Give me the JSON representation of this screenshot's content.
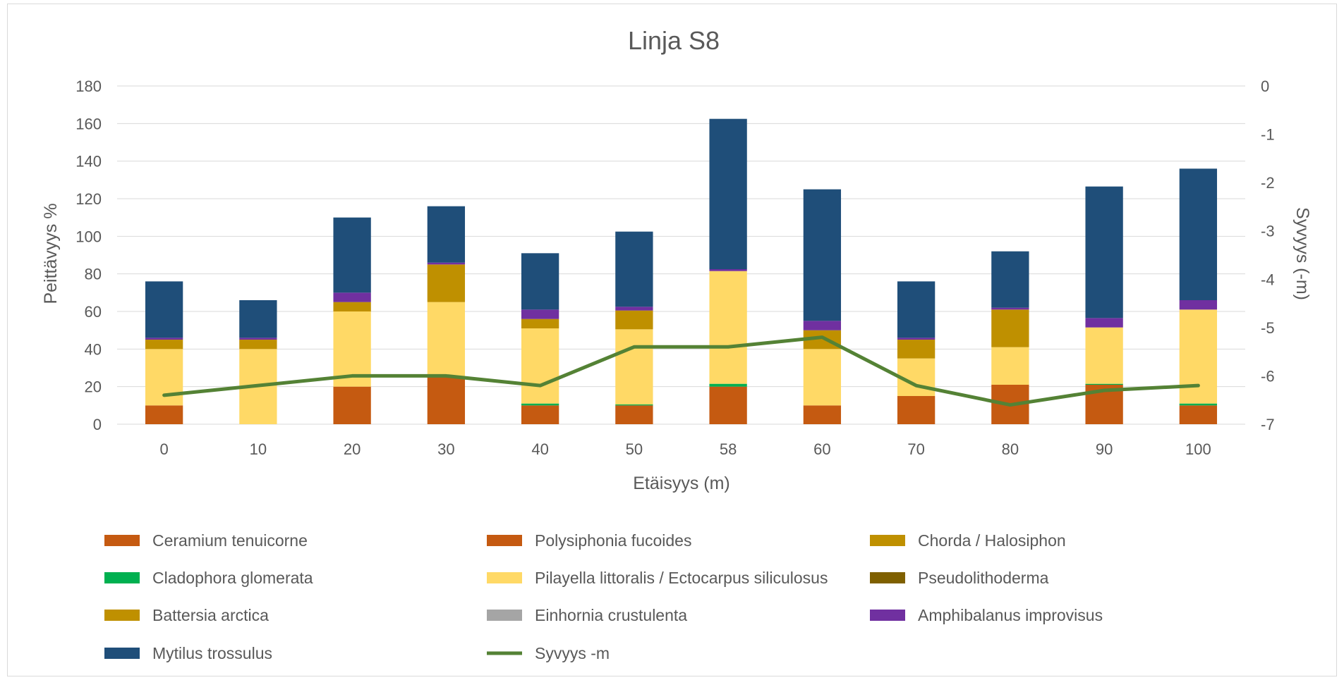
{
  "chart_data": {
    "type": "bar",
    "stacked": true,
    "title": "Linja S8",
    "xlabel": "Etäisyys (m)",
    "ylabel": "Peittävyys %",
    "y2label": "Syvyys (-m)",
    "categories": [
      "0",
      "10",
      "20",
      "30",
      "40",
      "50",
      "58",
      "60",
      "70",
      "80",
      "90",
      "100"
    ],
    "ylim": [
      0,
      180
    ],
    "yticks": [
      0,
      20,
      40,
      60,
      80,
      100,
      120,
      140,
      160,
      180
    ],
    "y2lim": [
      -7,
      0
    ],
    "y2ticks": [
      0,
      -1,
      -2,
      -3,
      -4,
      -5,
      -6,
      -7
    ],
    "grid": true,
    "legend_position": "bottom",
    "series": [
      {
        "name": "Ceramium tenuicorne",
        "color": "#c55a11",
        "values": [
          10,
          0,
          20,
          25,
          10,
          10,
          20,
          10,
          15,
          21,
          21,
          10
        ]
      },
      {
        "name": "Polysiphonia fucoides",
        "color": "#c55a11",
        "values": [
          0,
          0,
          0,
          0,
          0,
          0,
          0,
          0,
          0,
          0,
          0,
          0
        ]
      },
      {
        "name": "Chorda / Halosiphon",
        "color": "#bf9000",
        "values": [
          0,
          0,
          0,
          0,
          0,
          0,
          0,
          0,
          0,
          0,
          0,
          0
        ]
      },
      {
        "name": "Cladophora glomerata",
        "color": "#00b050",
        "values": [
          0,
          0,
          0,
          0,
          1,
          0.5,
          1.5,
          0,
          0,
          0,
          0.5,
          1
        ]
      },
      {
        "name": "Pilayella littoralis / Ectocarpus siliculosus",
        "color": "#ffd966",
        "values": [
          30,
          40,
          40,
          40,
          40,
          40,
          60,
          30,
          20,
          20,
          30,
          50
        ]
      },
      {
        "name": "Pseudolithoderma",
        "color": "#7f6000",
        "values": [
          0,
          0,
          0,
          0,
          0,
          0,
          0,
          0,
          0,
          0,
          0,
          0
        ]
      },
      {
        "name": "Battersia arctica",
        "color": "#bf9000",
        "values": [
          5,
          5,
          5,
          20,
          5,
          10,
          0,
          10,
          10,
          20,
          0,
          0
        ]
      },
      {
        "name": "Einhornia crustulenta",
        "color": "#a5a5a5",
        "values": [
          0,
          0,
          0,
          0,
          0,
          0,
          0,
          0,
          0,
          0,
          0,
          0
        ]
      },
      {
        "name": "Amphibalanus improvisus",
        "color": "#7030a0",
        "values": [
          1,
          1,
          5,
          1,
          5,
          2,
          1,
          5,
          1,
          1,
          5,
          5
        ]
      },
      {
        "name": "Mytilus trossulus",
        "color": "#1f4e79",
        "values": [
          30,
          20,
          40,
          30,
          30,
          40,
          80,
          70,
          30,
          30,
          70,
          70
        ]
      }
    ],
    "line_series": {
      "name": "Syvyys -m",
      "color": "#548235",
      "axis": "right",
      "values": [
        -6.4,
        -6.2,
        -6.0,
        -6.0,
        -6.2,
        -5.4,
        -5.4,
        -5.2,
        -6.2,
        -6.6,
        -6.3,
        -6.2
      ]
    }
  }
}
